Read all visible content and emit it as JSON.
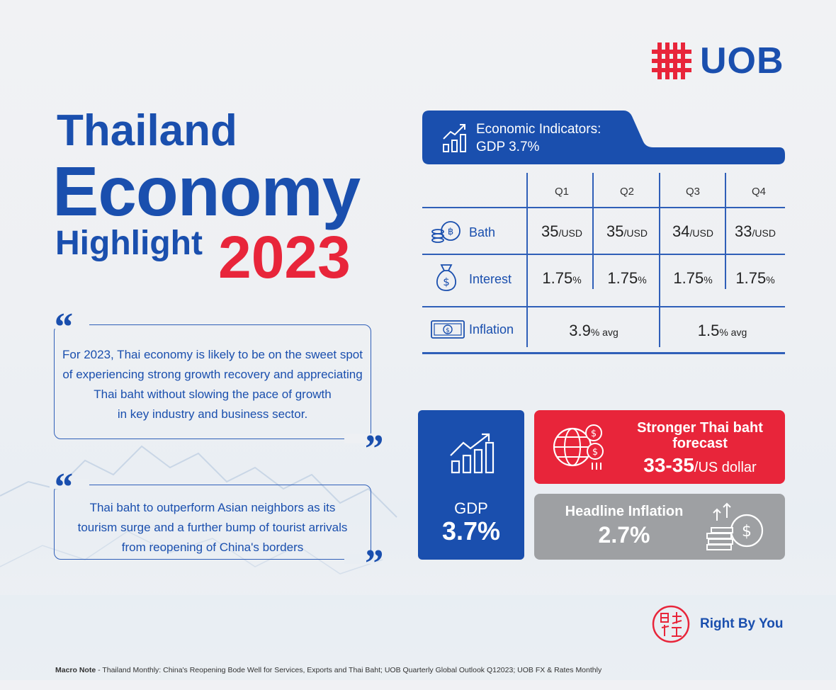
{
  "brand": {
    "logo_text": "UOB",
    "tagline": "Right By You"
  },
  "title": {
    "line1": "Thailand",
    "line2": "Economy",
    "line3": "Highlight",
    "year": "2023"
  },
  "quotes": [
    {
      "lines": [
        "For 2023, Thai economy is likely to be on the sweet spot",
        "of experiencing strong growth recovery and appreciating",
        "Thai baht without slowing the pace of growth",
        "in key industry and business sector."
      ]
    },
    {
      "lines": [
        "Thai baht to outperform Asian neighbors as its",
        "tourism surge and a further bump of tourist arrivals",
        "from reopening of China's borders"
      ]
    }
  ],
  "indicators": {
    "title_line1": "Economic Indicators:",
    "title_line2": "GDP 3.7%",
    "columns": [
      "Q1",
      "Q2",
      "Q3",
      "Q4"
    ],
    "rows": [
      {
        "label": "Bath",
        "icon": "coins-icon",
        "values": [
          {
            "num": "35",
            "unit": "/USD"
          },
          {
            "num": "35",
            "unit": "/USD"
          },
          {
            "num": "34",
            "unit": "/USD"
          },
          {
            "num": "33",
            "unit": "/USD"
          }
        ]
      },
      {
        "label": "Interest",
        "icon": "money-bag-icon",
        "values": [
          {
            "num": "1.75",
            "unit": "%"
          },
          {
            "num": "1.75",
            "unit": "%"
          },
          {
            "num": "1.75",
            "unit": "%"
          },
          {
            "num": "1.75",
            "unit": "%"
          }
        ]
      },
      {
        "label": "Inflation",
        "icon": "banknote-icon",
        "values": [
          {
            "num": "3.9",
            "unit": "% avg"
          },
          {
            "num": "1.5",
            "unit": "% avg"
          }
        ]
      }
    ]
  },
  "cards": {
    "gdp": {
      "label": "GDP",
      "value": "3.7%",
      "icon": "growth-chart-icon"
    },
    "baht": {
      "title_line1": "Stronger Thai baht",
      "title_line2": "forecast",
      "value": "33-35",
      "unit": "/US dollar",
      "icon": "globe-currency-icon"
    },
    "inflation": {
      "title": "Headline Inflation",
      "value": "2.7%",
      "icon": "coin-stack-icon"
    }
  },
  "footnote": {
    "label": "Macro Note",
    "text": " - Thailand Monthly: China's Reopening Bode Well for Services, Exports and Thai Baht; UOB Quarterly Global Outlook Q12023; UOB FX & Rates Monthly"
  },
  "colors": {
    "blue": "#1a4fae",
    "red": "#e8253a",
    "grey": "#9ea0a3"
  }
}
